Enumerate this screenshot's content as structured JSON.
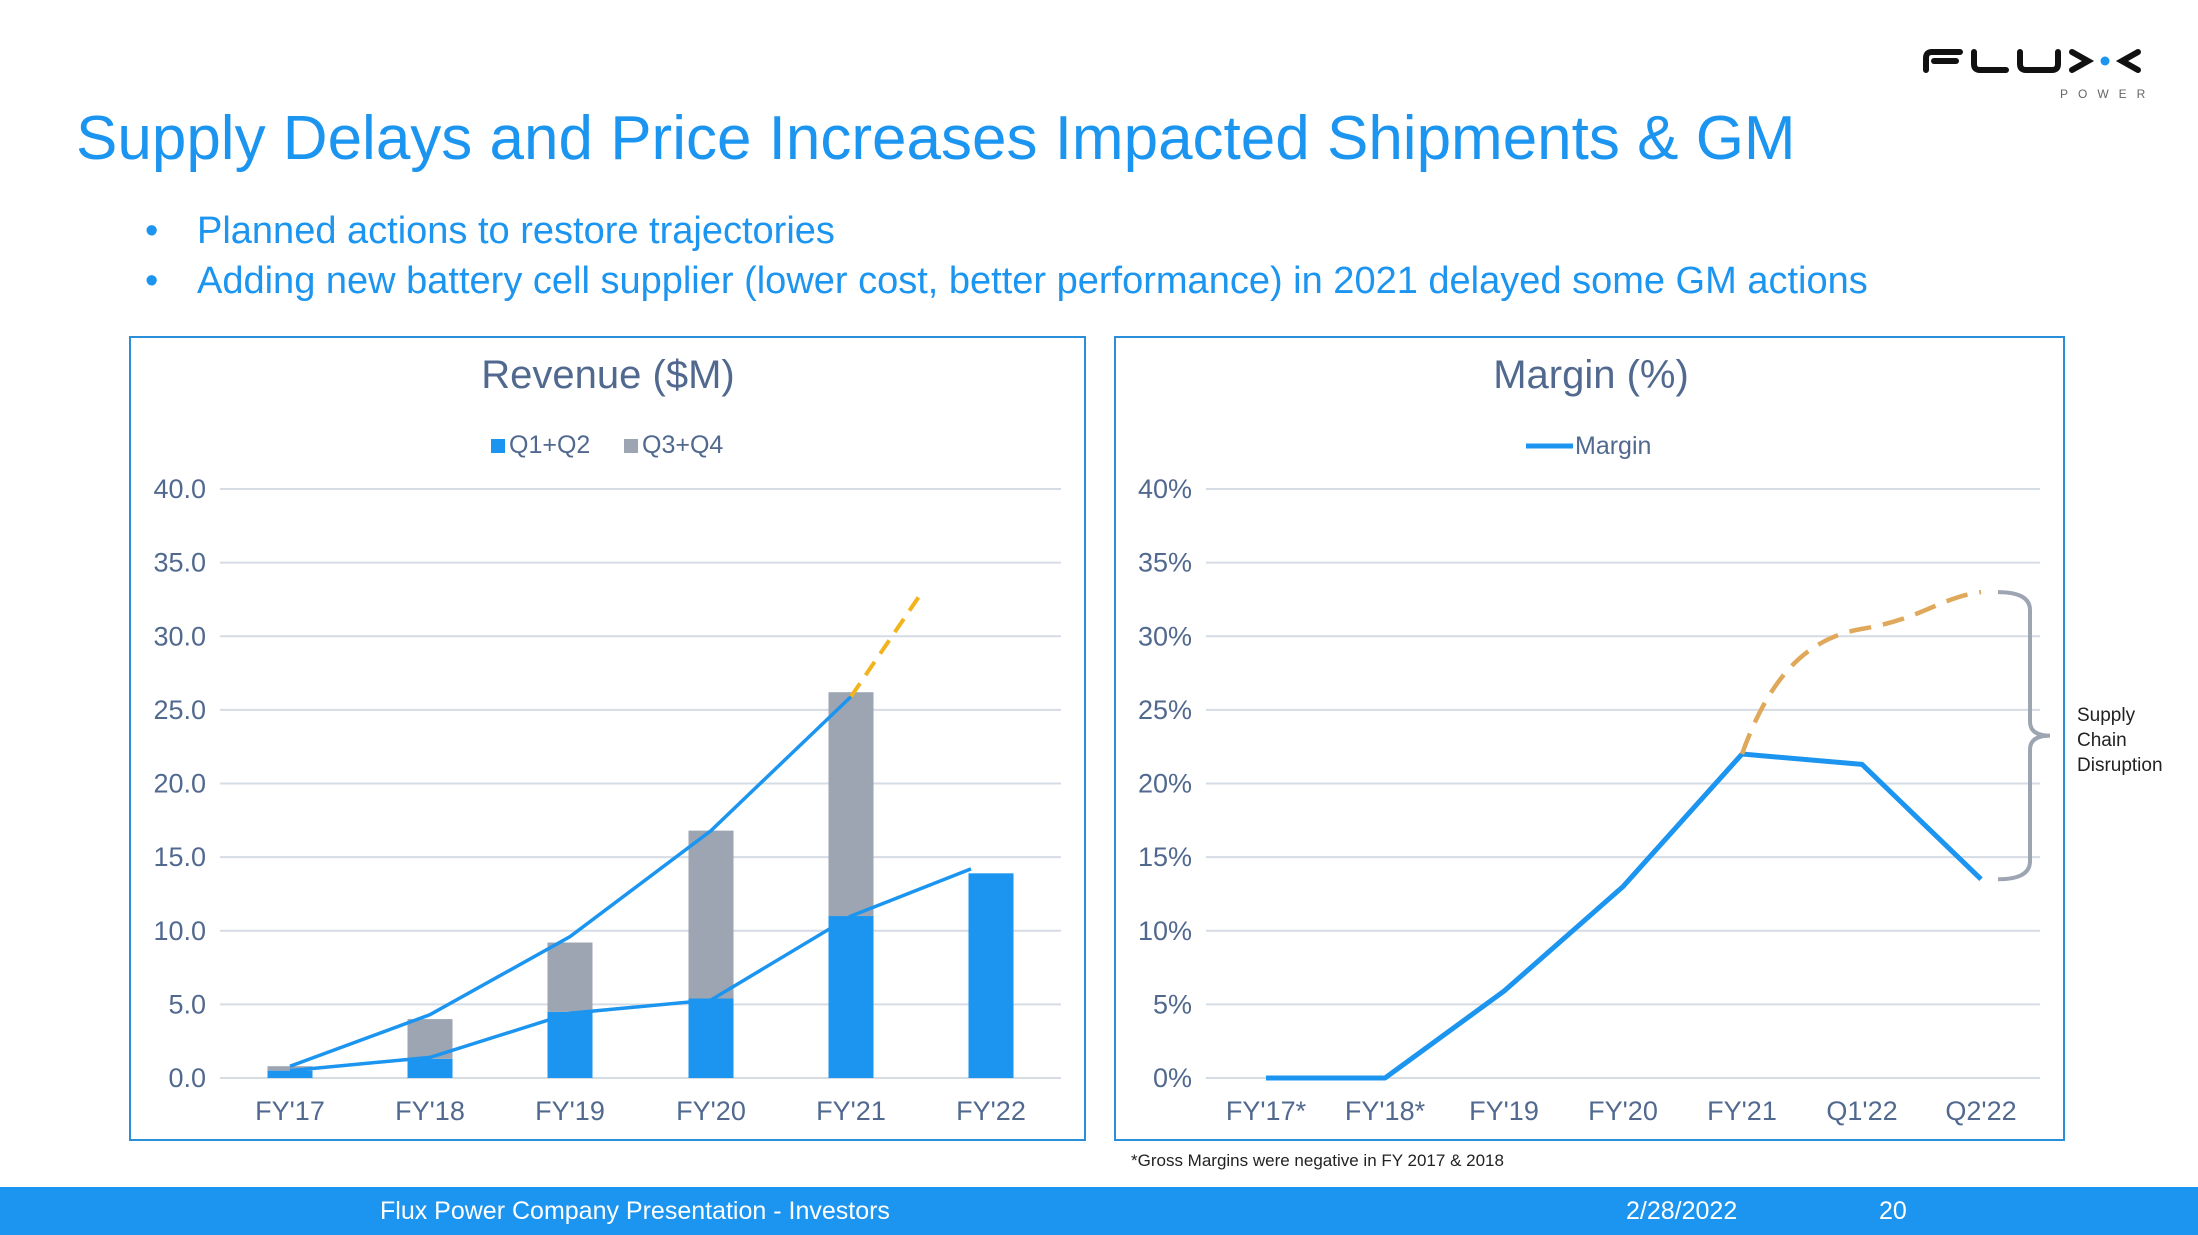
{
  "slide": {
    "title": "Supply Delays and Price Increases Impacted Shipments & GM",
    "bullets": [
      "Planned actions to restore trajectories",
      "Adding new battery cell supplier (lower cost, better performance) in 2021 delayed some GM actions"
    ],
    "bullet_glyph": "•",
    "logo": {
      "wordmark": "FLUX",
      "subtitle": "POWER",
      "icon": "flux-power-logo"
    },
    "footnote": "*Gross Margins were negative in FY 2017 & 2018",
    "footer": {
      "presentation": "Flux Power Company Presentation - Investors",
      "date": "2/28/2022",
      "page_number": "20"
    },
    "colors": {
      "accent": "#1b95f0",
      "q1q2": "#1b95f0",
      "q3q4": "#9da5b2",
      "projection_revenue": "#f2b31b",
      "projection_margin": "#e0a85a",
      "bracket": "#9da5b2",
      "axis_text": "#51698f"
    }
  },
  "chart_data": [
    {
      "type": "bar",
      "stacked": true,
      "title": "Revenue ($M)",
      "categories": [
        "FY'17",
        "FY'18",
        "FY'19",
        "FY'20",
        "FY'21",
        "FY'22"
      ],
      "series": [
        {
          "name": "Q1+Q2",
          "values": [
            0.5,
            1.3,
            4.5,
            5.4,
            11.0,
            13.9
          ]
        },
        {
          "name": "Q3+Q4",
          "values": [
            0.3,
            2.7,
            4.7,
            11.4,
            15.2,
            null
          ]
        }
      ],
      "trend_lines": [
        {
          "name": "Full-year trend",
          "values": [
            0.8,
            4.3,
            9.6,
            16.8,
            25.9
          ]
        },
        {
          "name": "Half-year trend",
          "values": [
            0.5,
            1.4,
            4.4,
            5.3,
            11.0,
            14.2
          ]
        }
      ],
      "projection": {
        "name": "Projected trajectory",
        "from": [
          "FY'21",
          25.9
        ],
        "to": [
          "FY'22",
          32.7
        ],
        "style": "dashed"
      },
      "legend": [
        "Q1+Q2",
        "Q3+Q4"
      ],
      "legend_position": "top",
      "yticks": [
        "0.0",
        "5.0",
        "10.0",
        "15.0",
        "20.0",
        "25.0",
        "30.0",
        "35.0",
        "40.0"
      ],
      "ylim": [
        0,
        40
      ],
      "xlabel": "",
      "ylabel": "",
      "grid": true
    },
    {
      "type": "line",
      "title": "Margin (%)",
      "categories": [
        "FY'17*",
        "FY'18*",
        "FY'19",
        "FY'20",
        "FY'21",
        "Q1'22",
        "Q2'22"
      ],
      "series": [
        {
          "name": "Margin",
          "values": [
            0,
            0,
            5.9,
            13.0,
            22.0,
            21.3,
            13.5
          ]
        }
      ],
      "projection": {
        "name": "Planned trajectory",
        "categories": [
          "FY'21",
          "Q1'22",
          "Q2'22"
        ],
        "values": [
          22.0,
          30.5,
          33.0
        ],
        "style": "dashed"
      },
      "annotation": {
        "text": [
          "Supply",
          "Chain",
          "Disruption"
        ],
        "spans": [
          13.5,
          33.0
        ]
      },
      "legend": [
        "Margin"
      ],
      "legend_position": "top",
      "yticks": [
        "0%",
        "5%",
        "10%",
        "15%",
        "20%",
        "25%",
        "30%",
        "35%",
        "40%"
      ],
      "ylim": [
        0,
        40
      ],
      "xlabel": "",
      "ylabel": "",
      "grid": true
    }
  ]
}
